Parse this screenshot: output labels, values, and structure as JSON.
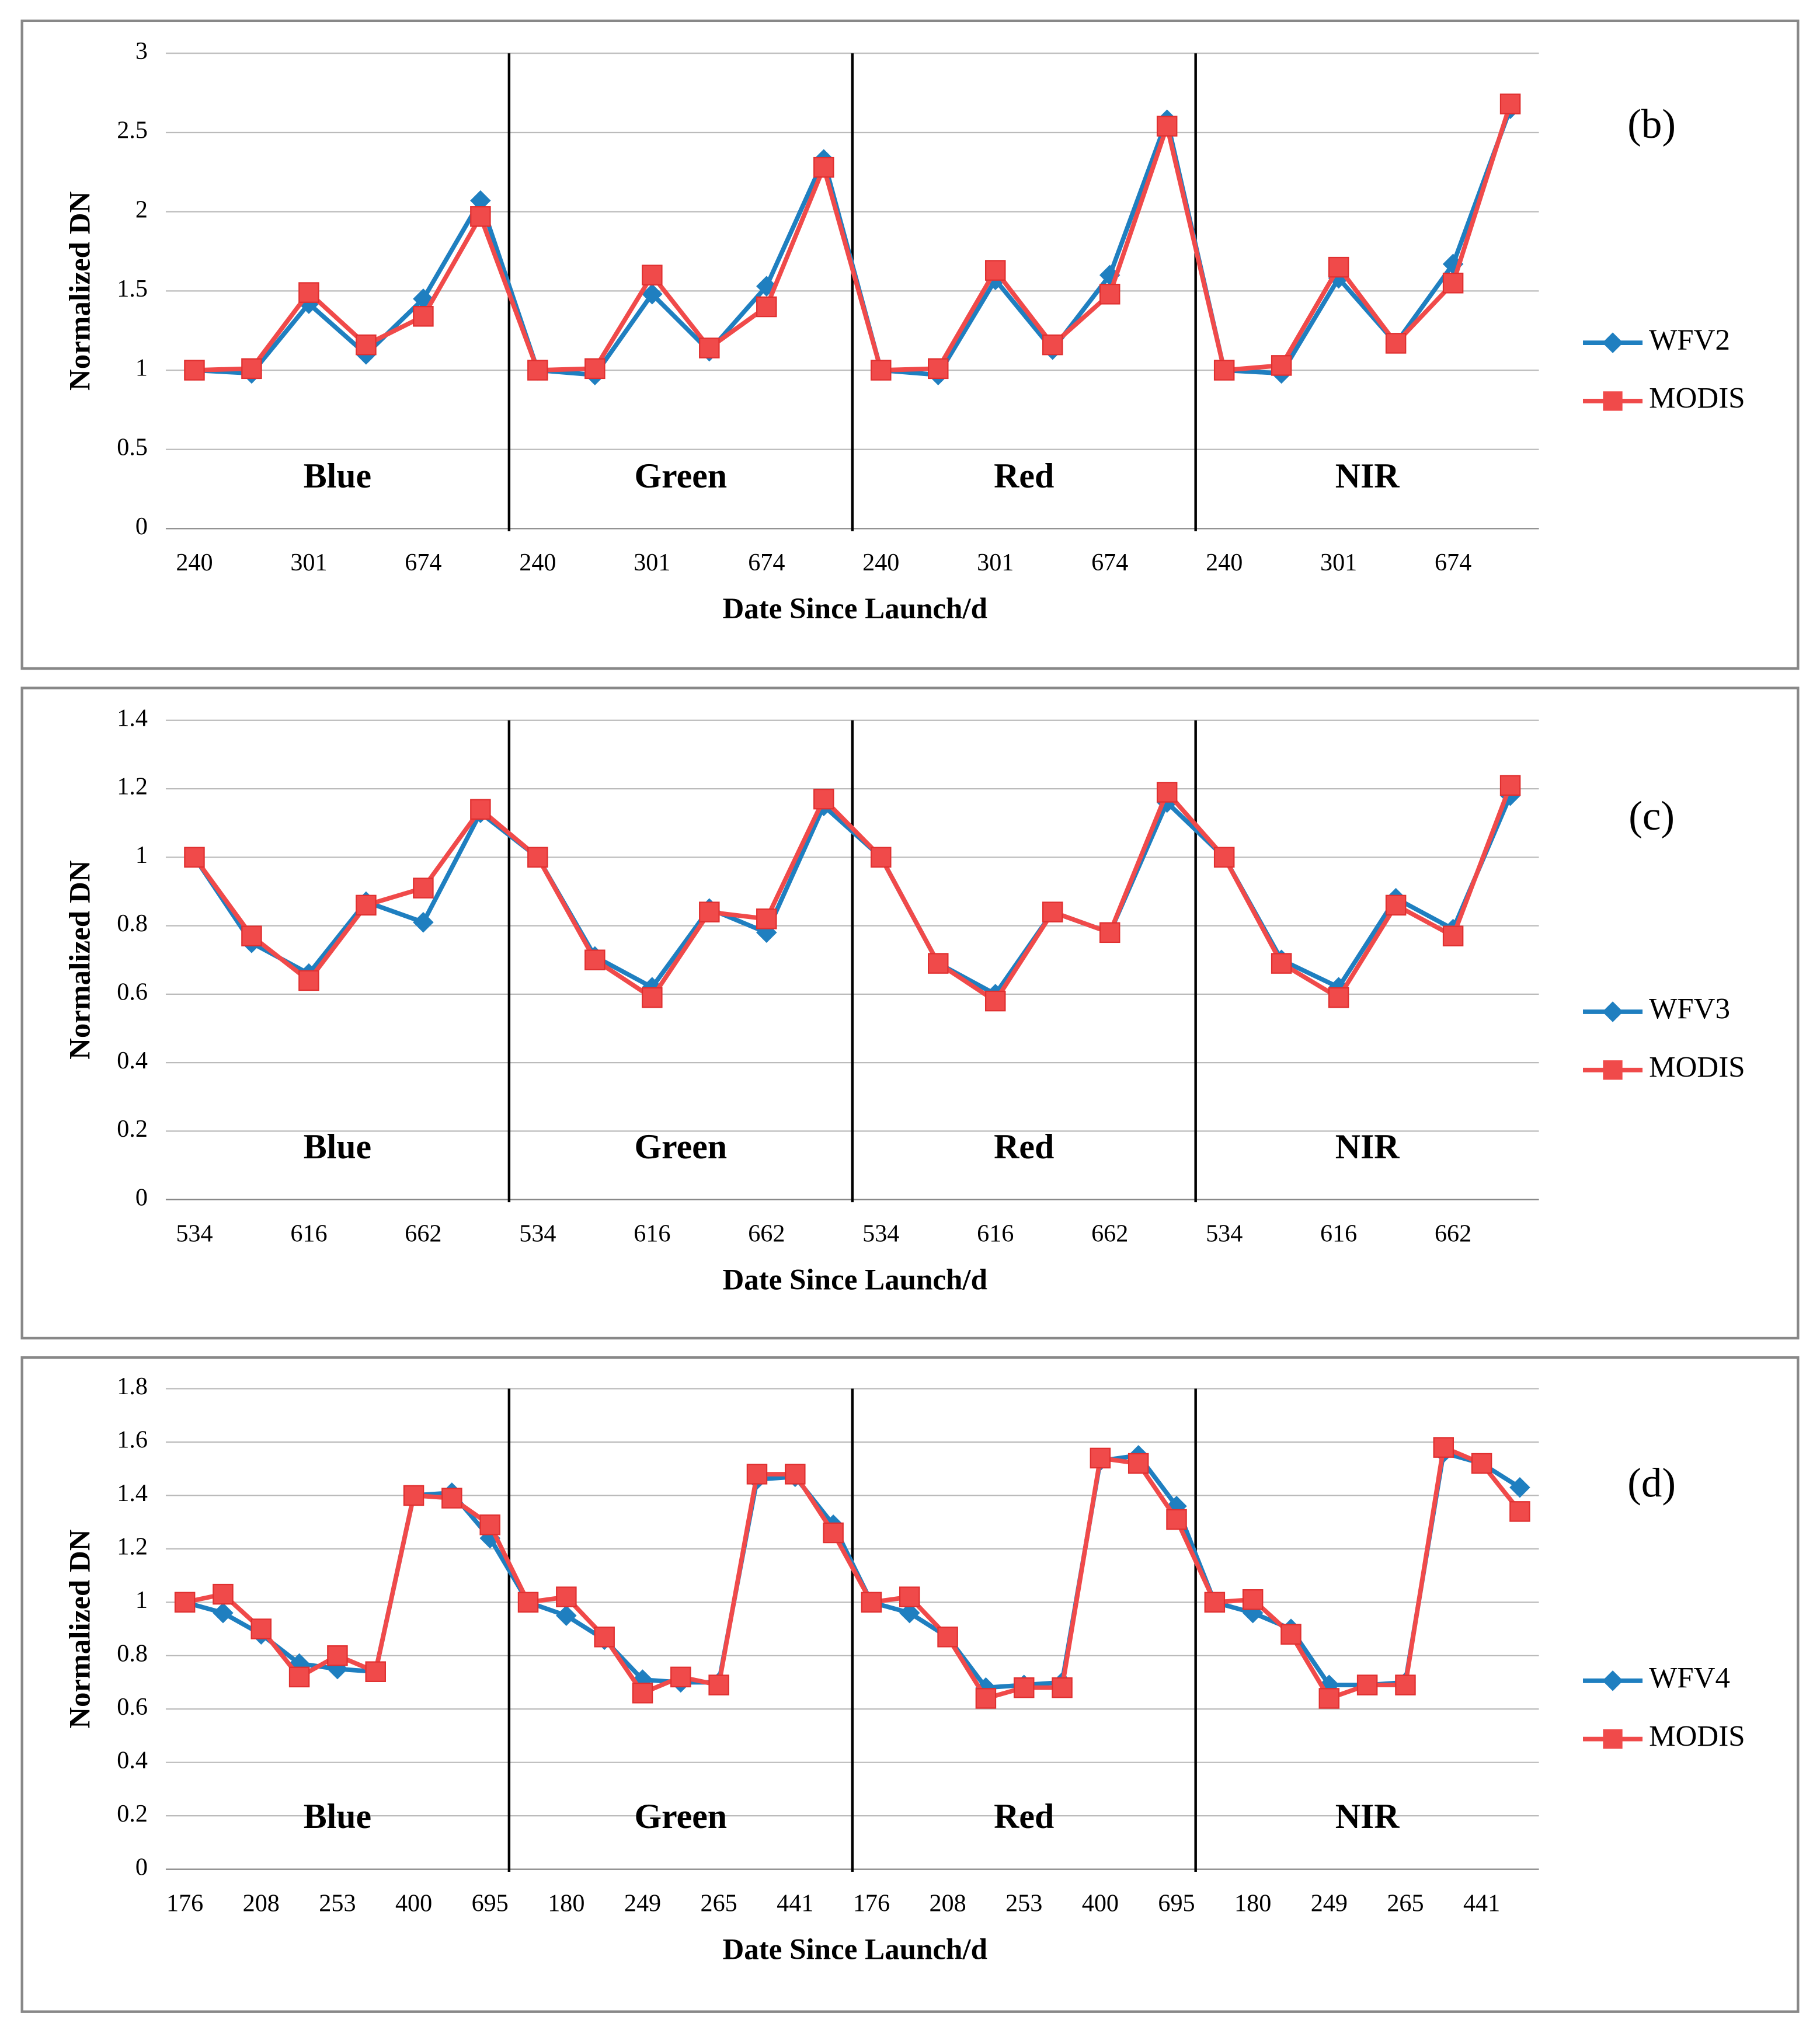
{
  "chart_data": [
    {
      "type": "line",
      "panel_label": "(b)",
      "y_label": "Normalized DN",
      "x_label": "Date  Since Launch/d",
      "annotations": [
        "Blue",
        "Green",
        "Red",
        "NIR"
      ],
      "categories": [
        "240",
        null,
        "301",
        null,
        "674",
        null,
        "240",
        null,
        "301",
        null,
        "674",
        null,
        "240",
        null,
        "301",
        null,
        "674",
        null,
        "240",
        null,
        "301",
        null,
        "674",
        null
      ],
      "series": [
        {
          "name": "WFV2",
          "color": "#1f7fc0",
          "values": [
            1,
            0.98,
            1.42,
            1.1,
            1.45,
            2.07,
            1,
            0.97,
            1.48,
            1.12,
            1.53,
            2.33,
            1,
            0.97,
            1.57,
            1.13,
            1.6,
            2.58,
            1,
            0.98,
            1.58,
            1.17,
            1.67,
            2.65
          ]
        },
        {
          "name": "MODIS",
          "color": "#f04a4a",
          "values": [
            1,
            1.01,
            1.49,
            1.16,
            1.34,
            1.97,
            1,
            1.01,
            1.6,
            1.14,
            1.4,
            2.28,
            1,
            1.01,
            1.63,
            1.16,
            1.48,
            2.54,
            1,
            1.03,
            1.65,
            1.17,
            1.55,
            2.68
          ]
        }
      ],
      "ylim": [
        0,
        3
      ],
      "yticks": [
        0,
        0.5,
        1,
        1.5,
        2,
        2.5,
        3
      ],
      "grid": true
    },
    {
      "type": "line",
      "panel_label": "(c)",
      "y_label": "Normalized DN",
      "x_label": "Date  Since Launch/d",
      "annotations": [
        "Blue",
        "Green",
        "Red",
        "NIR"
      ],
      "categories": [
        "534",
        null,
        "616",
        null,
        "662",
        null,
        "534",
        null,
        "616",
        null,
        "662",
        null,
        "534",
        null,
        "616",
        null,
        "662",
        null,
        "534",
        null,
        "616",
        null,
        "662",
        null
      ],
      "series": [
        {
          "name": "WFV3",
          "color": "#1f7fc0",
          "values": [
            1,
            0.75,
            0.66,
            0.87,
            0.81,
            1.13,
            1,
            0.71,
            0.62,
            0.85,
            0.78,
            1.15,
            1,
            0.69,
            0.6,
            0.84,
            0.78,
            1.16,
            1,
            0.7,
            0.62,
            0.88,
            0.79,
            1.18
          ]
        },
        {
          "name": "MODIS",
          "color": "#f04a4a",
          "values": [
            1,
            0.77,
            0.64,
            0.86,
            0.91,
            1.14,
            1,
            0.7,
            0.59,
            0.84,
            0.82,
            1.17,
            1,
            0.69,
            0.58,
            0.84,
            0.78,
            1.19,
            1,
            0.69,
            0.59,
            0.86,
            0.77,
            1.21
          ]
        }
      ],
      "ylim": [
        0,
        1.4
      ],
      "yticks": [
        0,
        0.2,
        0.4,
        0.6,
        0.8,
        1,
        1.2,
        1.4
      ],
      "grid": true
    },
    {
      "type": "line",
      "panel_label": "(d)",
      "y_label": "Normalized DN",
      "x_label": "Date Since Launch/d",
      "annotations": [
        "Blue",
        "Green",
        "Red",
        "NIR"
      ],
      "categories": [
        "176",
        null,
        "208",
        null,
        "253",
        null,
        "400",
        null,
        "695",
        null,
        "180",
        null,
        "249",
        null,
        "265",
        null,
        "441",
        null,
        "176",
        null,
        "208",
        null,
        "253",
        null,
        "400",
        null,
        "695",
        null,
        "180",
        null,
        "249",
        null,
        "265",
        null,
        "441",
        null
      ],
      "series": [
        {
          "name": "WFV4",
          "color": "#1f7fc0",
          "values": [
            1,
            0.96,
            0.88,
            0.77,
            0.75,
            0.74,
            1.4,
            1.41,
            1.24,
            1,
            0.95,
            0.86,
            0.71,
            0.7,
            0.7,
            1.46,
            1.47,
            1.29,
            1,
            0.96,
            0.87,
            0.68,
            0.69,
            0.7,
            1.53,
            1.55,
            1.36,
            1,
            0.96,
            0.9,
            0.69,
            0.69,
            0.7,
            1.56,
            1.52,
            1.43
          ]
        },
        {
          "name": "MODIS",
          "color": "#f04a4a",
          "values": [
            1,
            1.03,
            0.9,
            0.72,
            0.8,
            0.74,
            1.4,
            1.39,
            1.29,
            1,
            1.02,
            0.87,
            0.66,
            0.72,
            0.69,
            1.48,
            1.48,
            1.26,
            1,
            1.02,
            0.87,
            0.64,
            0.68,
            0.68,
            1.54,
            1.52,
            1.31,
            1,
            1.01,
            0.88,
            0.64,
            0.69,
            0.69,
            1.58,
            1.52,
            1.34
          ]
        }
      ],
      "ylim": [
        0,
        1.8
      ],
      "yticks": [
        0,
        0.2,
        0.4,
        0.6,
        0.8,
        1,
        1.2,
        1.4,
        1.6,
        1.8
      ],
      "grid": true
    }
  ]
}
